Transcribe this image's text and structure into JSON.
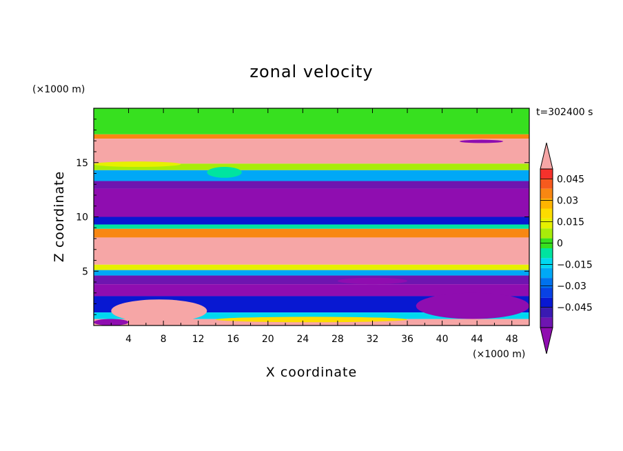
{
  "chart_data": {
    "type": "heatmap",
    "title": "zonal velocity",
    "xlabel": "X coordinate",
    "ylabel": "Z coordinate",
    "x_unit_label": "(×1000 m)",
    "z_unit_label": "(×1000 m)",
    "time_label": "t=302400 s",
    "xlim": [
      0,
      50
    ],
    "ylim": [
      0,
      20
    ],
    "x_ticks": [
      "4",
      "8",
      "12",
      "16",
      "20",
      "24",
      "28",
      "32",
      "36",
      "40",
      "44",
      "48"
    ],
    "y_ticks": [
      "5",
      "10",
      "15"
    ],
    "colorbar": {
      "range": [
        -0.05,
        0.05
      ],
      "labels": [
        "0.045",
        "0.03",
        "0.015",
        "0",
        "−0.015",
        "−0.03",
        "−0.045"
      ],
      "colors": [
        "#f6a6a6",
        "#f5322c",
        "#f65a1e",
        "#f88712",
        "#ffb400",
        "#fcdc00",
        "#e6f000",
        "#a8ec0a",
        "#37e01f",
        "#00e4a0",
        "#00d8f0",
        "#00a8f6",
        "#0072ee",
        "#0842e4",
        "#0818d2",
        "#3a1ab2",
        "#6e15b0",
        "#8f0db0"
      ]
    },
    "bands": [
      {
        "z": [
          17.6,
          20.0
        ],
        "u": 0.005
      },
      {
        "z": [
          17.2,
          17.6
        ],
        "u": 0.03
      },
      {
        "z": [
          14.9,
          17.2
        ],
        "u": 0.05
      },
      {
        "z": [
          14.3,
          14.9
        ],
        "u": 0.01
      },
      {
        "z": [
          13.3,
          14.3
        ],
        "u": -0.015
      },
      {
        "z": [
          12.6,
          13.3
        ],
        "u": -0.04
      },
      {
        "z": [
          10.0,
          12.6
        ],
        "u": -0.05
      },
      {
        "z": [
          9.3,
          10.0
        ],
        "u": -0.03
      },
      {
        "z": [
          8.9,
          9.3
        ],
        "u": -0.005
      },
      {
        "z": [
          8.1,
          8.9
        ],
        "u": 0.03
      },
      {
        "z": [
          5.6,
          8.1
        ],
        "u": 0.05
      },
      {
        "z": [
          5.1,
          5.6
        ],
        "u": 0.015
      },
      {
        "z": [
          4.6,
          5.1
        ],
        "u": -0.015
      },
      {
        "z": [
          3.8,
          4.6
        ],
        "u": -0.04
      },
      {
        "z": [
          2.7,
          3.8
        ],
        "u": -0.045
      },
      {
        "z": [
          1.2,
          2.7
        ],
        "u": -0.03
      },
      {
        "z": [
          0.6,
          1.2
        ],
        "u": -0.01
      },
      {
        "z": [
          0.0,
          0.6
        ],
        "u": 0.05
      }
    ],
    "features": [
      {
        "x": [
          0,
          10
        ],
        "z": [
          14.6,
          15.1
        ],
        "u": 0.015
      },
      {
        "x": [
          13,
          17
        ],
        "z": [
          13.6,
          14.6
        ],
        "u": 0.0
      },
      {
        "x": [
          42,
          47
        ],
        "z": [
          16.8,
          17.1
        ],
        "u": -0.05
      },
      {
        "x": [
          37,
          50
        ],
        "z": [
          0.6,
          3.0
        ],
        "u": -0.05
      },
      {
        "x": [
          2,
          13
        ],
        "z": [
          0.3,
          2.4
        ],
        "u": 0.05
      },
      {
        "x": [
          0,
          4
        ],
        "z": [
          0.0,
          0.6
        ],
        "u": -0.045
      },
      {
        "x": [
          14,
          36
        ],
        "z": [
          0.3,
          0.8
        ],
        "u": 0.02
      },
      {
        "x": [
          28,
          36
        ],
        "z": [
          3.8,
          4.4
        ],
        "u": -0.05
      }
    ]
  }
}
